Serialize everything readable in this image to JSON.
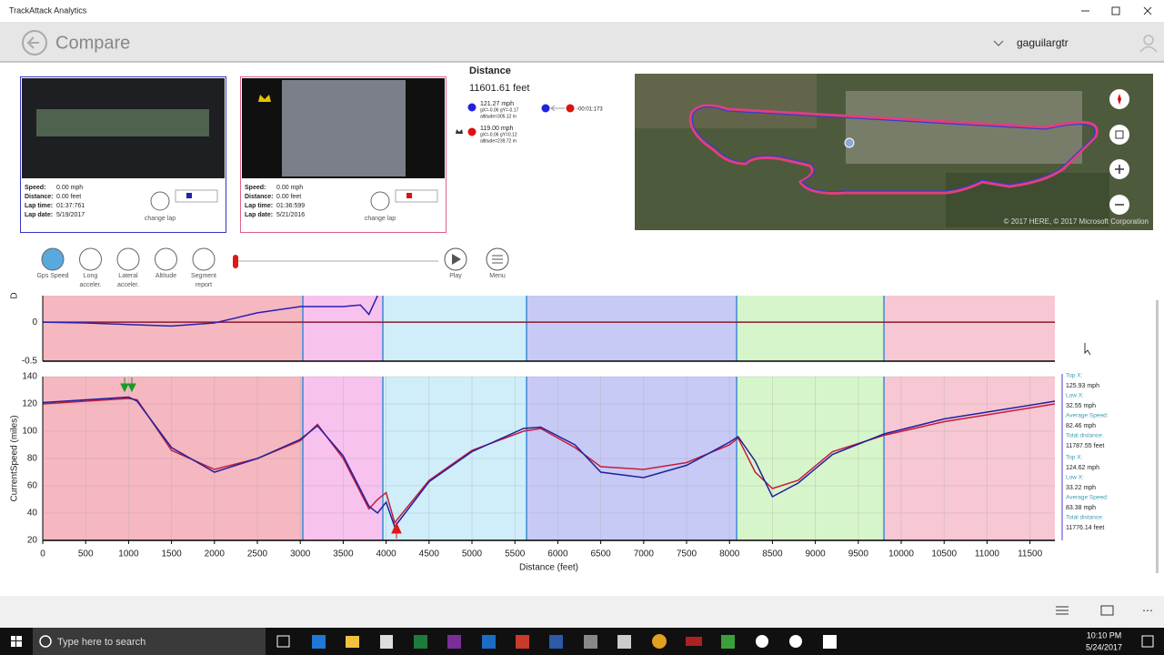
{
  "window": {
    "title": "TrackAttack Analytics"
  },
  "header": {
    "title": "Compare",
    "user": "gaguilargtr"
  },
  "laps": [
    {
      "speed_label": "Speed:",
      "speed": "0.00 mph",
      "distance_label": "Distance:",
      "distance": "0.00 feet",
      "lap_time_label": "Lap time:",
      "lap_time": "01:37:761",
      "lap_date_label": "Lap date:",
      "lap_date": "5/19/2017",
      "change": "change lap"
    },
    {
      "speed_label": "Speed:",
      "speed": "0.00 mph",
      "distance_label": "Distance:",
      "distance": "0.00 feet",
      "lap_time_label": "Lap time:",
      "lap_time": "01:36:599",
      "lap_date_label": "Lap date:",
      "lap_date": "5/21/2016",
      "change": "change lap"
    }
  ],
  "distance_panel": {
    "title": "Distance",
    "value": "11601.61 feet",
    "rows": [
      {
        "speed": "121.27 mph",
        "g": "gX=-0.06   gY=-0.17",
        "altitude": "altitude=305.12 m"
      },
      {
        "speed": "119.00 mph",
        "g": "gX=-0.06   gY=0.12",
        "altitude": "altitude=239.72 m"
      }
    ],
    "delta": "-00:01:173"
  },
  "map": {
    "attribution": "© 2017 HERE, © 2017 Microsoft Corporation"
  },
  "toolbar": {
    "buttons": [
      [
        "Gps Speed"
      ],
      [
        "Long",
        "acceler."
      ],
      [
        "Lateral",
        "acceler."
      ],
      [
        "Altitude"
      ],
      [
        "Segment",
        "report"
      ]
    ],
    "play": "Play",
    "menu": "Menu"
  },
  "chart_data": [
    {
      "type": "line",
      "y_label": "D",
      "xlim": [
        0,
        11790
      ],
      "ylim": [
        -0.5,
        0.34
      ],
      "yticks": [
        0,
        -0.5
      ],
      "grid": true,
      "segments": [
        {
          "start": 0,
          "end": 3030,
          "color": "#f5b7c0"
        },
        {
          "start": 3030,
          "end": 3962,
          "color": "#f7c2ee"
        },
        {
          "start": 3962,
          "end": 5636,
          "color": "#cfeefa"
        },
        {
          "start": 5636,
          "end": 8083,
          "color": "#c7caf5"
        },
        {
          "start": 8083,
          "end": 9799,
          "color": "#d6f5ca"
        },
        {
          "start": 9799,
          "end": 11790,
          "color": "#f7c7d4"
        }
      ],
      "x": [
        0,
        500,
        1000,
        1500,
        2000,
        2500,
        3000,
        3500,
        3700,
        3800,
        3900,
        4000,
        6000,
        8000,
        10000,
        11790
      ],
      "series": [
        {
          "color": "#8b1a2e",
          "values": [
            0,
            0,
            0,
            0,
            0,
            0,
            0,
            0,
            0,
            0,
            0,
            0,
            0,
            0,
            0,
            0
          ]
        },
        {
          "color": "#2a1fb0",
          "values": [
            0,
            -0.01,
            -0.03,
            -0.05,
            -0.01,
            0.12,
            0.2,
            0.2,
            0.22,
            0.1,
            0.34,
            null,
            null,
            null,
            null,
            null
          ]
        }
      ]
    },
    {
      "type": "line",
      "x_label": "Distance (feet)",
      "y_label": "CurrentSpeed (miles)",
      "xlim": [
        0,
        11790
      ],
      "ylim": [
        20,
        140
      ],
      "xticks": [
        0,
        500,
        1000,
        1500,
        2000,
        2500,
        3000,
        3500,
        4000,
        4500,
        5000,
        5500,
        6000,
        6500,
        7000,
        7500,
        8000,
        8500,
        9000,
        9500,
        10000,
        10500,
        11000,
        11500
      ],
      "yticks": [
        20,
        40,
        60,
        80,
        100,
        120,
        140
      ],
      "grid": true,
      "segments": [
        {
          "start": 0,
          "end": 3030,
          "color": "#f5b7c0"
        },
        {
          "start": 3030,
          "end": 3962,
          "color": "#f7c2ee"
        },
        {
          "start": 3962,
          "end": 5636,
          "color": "#cfeefa"
        },
        {
          "start": 5636,
          "end": 8083,
          "color": "#c7caf5"
        },
        {
          "start": 8083,
          "end": 9799,
          "color": "#d6f5ca"
        },
        {
          "start": 9799,
          "end": 11790,
          "color": "#f7c7d4"
        }
      ],
      "x": [
        0,
        500,
        1000,
        1100,
        1500,
        2000,
        2500,
        3000,
        3200,
        3500,
        3800,
        3900,
        4000,
        4100,
        4500,
        5000,
        5600,
        5800,
        6200,
        6500,
        7000,
        7500,
        8000,
        8100,
        8300,
        8500,
        8800,
        9200,
        9800,
        10500,
        11000,
        11790
      ],
      "series": [
        {
          "color": "#c41e3a",
          "values": [
            120,
            122,
            124,
            123,
            86,
            72,
            80,
            93,
            105,
            80,
            43,
            50,
            55,
            33,
            64,
            86,
            100,
            102,
            88,
            74,
            72,
            77,
            90,
            95,
            70,
            58,
            64,
            85,
            97,
            107,
            112,
            120
          ]
        },
        {
          "color": "#22209e",
          "values": [
            121,
            123,
            125,
            122,
            88,
            70,
            80,
            94,
            104,
            82,
            45,
            40,
            48,
            30,
            63,
            85,
            102,
            103,
            90,
            70,
            66,
            75,
            92,
            96,
            78,
            52,
            62,
            83,
            98,
            109,
            114,
            122
          ]
        }
      ]
    }
  ],
  "stats": [
    [
      {
        "label": "Top X:",
        "value": "125.93 mph"
      },
      {
        "label": "Low X:",
        "value": "32.55 mph"
      },
      {
        "label": "Average Speed:",
        "value": "82.46 mph"
      },
      {
        "label": "Total distance:",
        "value": "11787.55 feet"
      }
    ],
    [
      {
        "label": "Top X:",
        "value": "124.62 mph"
      },
      {
        "label": "Low X:",
        "value": "33.22 mph"
      },
      {
        "label": "Average Speed:",
        "value": "83.38 mph"
      },
      {
        "label": "Total distance:",
        "value": "11776.14 feet"
      }
    ]
  ],
  "taskbar": {
    "search": "Type here to search",
    "time": "10:10 PM",
    "date": "5/24/2017"
  }
}
